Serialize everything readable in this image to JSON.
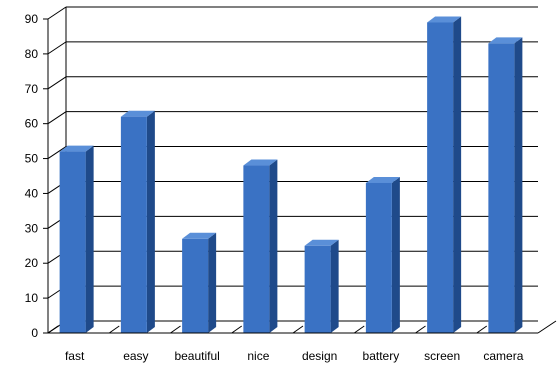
{
  "chart_data": {
    "type": "bar",
    "title": "",
    "xlabel": "",
    "ylabel": "",
    "categories": [
      "fast",
      "easy",
      "beautiful",
      "nice",
      "design",
      "battery",
      "screen",
      "camera"
    ],
    "values": [
      52,
      62,
      27,
      48,
      25,
      43,
      89,
      83
    ],
    "ylim": [
      0,
      90
    ],
    "yticks": [
      "0",
      "10",
      "20",
      "30",
      "40",
      "50",
      "60",
      "70",
      "80",
      "90"
    ],
    "grid": true,
    "legend": "none",
    "bar_color": "#3a72c4",
    "bar_side_color": "#1f4a8a",
    "bar_top_color": "#5a8fd8"
  }
}
